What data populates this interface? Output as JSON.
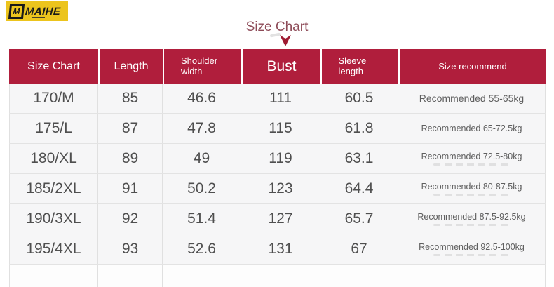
{
  "logo": {
    "badge": "M",
    "name": "MAIHE"
  },
  "title": {
    "text": "Size Chart"
  },
  "colors": {
    "header_bg": "#b01e3c",
    "header_text": "#ffffff",
    "title_text": "#8d4a57",
    "logo_bg": "#ecc41d",
    "row_bg": "#f6f6f7",
    "cell_text": "#4f4f4f"
  },
  "icons": {
    "arrow": "down-arrowhead"
  },
  "chart_data": {
    "type": "table",
    "title": "Size Chart",
    "columns": [
      "Size Chart",
      "Length",
      "Shoulder width",
      "Bust",
      "Sleeve length",
      "Size recommend"
    ],
    "rows": [
      [
        "170/M",
        "85",
        "46.6",
        "111",
        "60.5",
        "Recommended 55-65kg"
      ],
      [
        "175/L",
        "87",
        "47.8",
        "115",
        "61.8",
        "Recommended 65-72.5kg"
      ],
      [
        "180/XL",
        "89",
        "49",
        "119",
        "63.1",
        "Recommended 72.5-80kg"
      ],
      [
        "185/2XL",
        "91",
        "50.2",
        "123",
        "64.4",
        "Recommended 80-87.5kg"
      ],
      [
        "190/3XL",
        "92",
        "51.4",
        "127",
        "65.7",
        "Recommended 87.5-92.5kg"
      ],
      [
        "195/4XL",
        "93",
        "52.6",
        "131",
        "67",
        "Recommended 92.5-100kg"
      ]
    ]
  }
}
